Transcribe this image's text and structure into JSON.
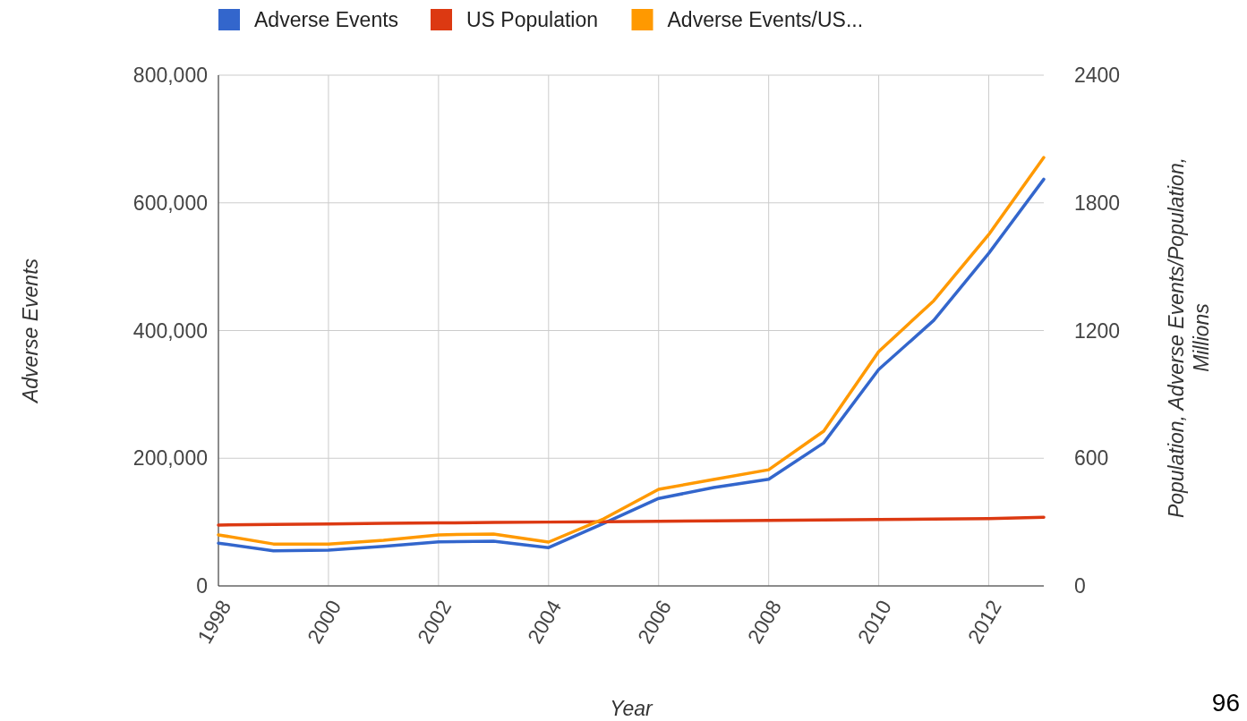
{
  "chart_data": {
    "type": "line",
    "xlabel": "Year",
    "ylabel": "Adverse Events",
    "y2label": "Population, Adverse Events/Population, Millions",
    "x": [
      1998,
      1999,
      2000,
      2001,
      2002,
      2003,
      2004,
      2005,
      2006,
      2007,
      2008,
      2009,
      2010,
      2011,
      2012,
      2013
    ],
    "series": [
      {
        "name": "Adverse Events",
        "color": "#3366cc",
        "values": [
          67000,
          55000,
          56000,
          62000,
          69000,
          70000,
          60000,
          98000,
          137000,
          154000,
          167000,
          224000,
          339000,
          416000,
          521000,
          637000
        ]
      },
      {
        "name": "US Population",
        "color": "#dc3912",
        "axis": "y2",
        "values": [
          286,
          289,
          291,
          294,
          296,
          298,
          300,
          302,
          304,
          306,
          308,
          310,
          312,
          314,
          316,
          323
        ]
      },
      {
        "name": "Adverse Events/US...",
        "color": "#ff9900",
        "axis": "y2",
        "values": [
          240,
          197,
          197,
          214,
          240,
          244,
          206,
          315,
          454,
          500,
          546,
          727,
          1101,
          1340,
          1651,
          2013
        ]
      }
    ],
    "xlim": [
      1998,
      2013
    ],
    "xticks": [
      1998,
      2000,
      2002,
      2004,
      2006,
      2008,
      2010,
      2012
    ],
    "ylim": [
      0,
      800000
    ],
    "yticks": [
      {
        "value": 0,
        "label": "0"
      },
      {
        "value": 200000,
        "label": "200,000"
      },
      {
        "value": 400000,
        "label": "400,000"
      },
      {
        "value": 600000,
        "label": "600,000"
      },
      {
        "value": 800000,
        "label": "800,000"
      }
    ],
    "y2lim": [
      0,
      2400
    ],
    "y2ticks": [
      0,
      600,
      1200,
      1800,
      2400
    ],
    "grid": true,
    "legend": "top",
    "annotations": [
      "96"
    ]
  }
}
